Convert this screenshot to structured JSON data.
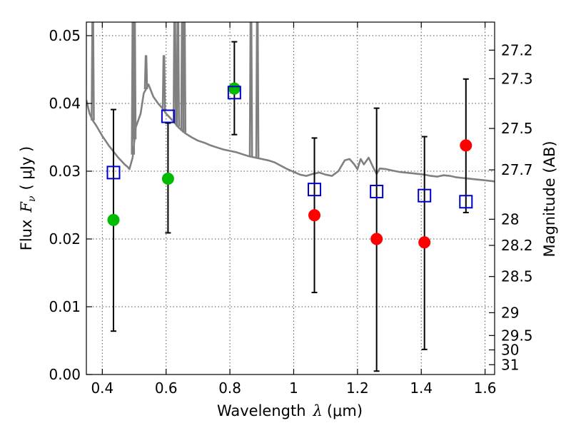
{
  "chart_data": {
    "type": "scatter",
    "title": "",
    "xlabel_prefix": "Wavelength",
    "xlabel_symbol": "λ",
    "xlabel_unit": "(μm)",
    "ylabel_prefix": "Flux",
    "ylabel_symbol": "F",
    "ylabel_subscript": "ν",
    "ylabel_unit": "( μJy )",
    "y2label": "Magnitude (AB)",
    "xlim": [
      0.35,
      1.63
    ],
    "ylim": [
      0.0,
      0.052
    ],
    "grid": true,
    "x_ticks": [
      {
        "v": 0.4,
        "label": "0.4"
      },
      {
        "v": 0.6,
        "label": "0.6"
      },
      {
        "v": 0.8,
        "label": "0.8"
      },
      {
        "v": 1.0,
        "label": "1"
      },
      {
        "v": 1.2,
        "label": "1.2"
      },
      {
        "v": 1.4,
        "label": "1.4"
      },
      {
        "v": 1.6,
        "label": "1.6"
      }
    ],
    "y_ticks": [
      {
        "v": 0.0,
        "label": "0.00"
      },
      {
        "v": 0.01,
        "label": "0.01"
      },
      {
        "v": 0.02,
        "label": "0.02"
      },
      {
        "v": 0.03,
        "label": "0.03"
      },
      {
        "v": 0.04,
        "label": "0.04"
      },
      {
        "v": 0.05,
        "label": "0.05"
      }
    ],
    "mag_ticks": [
      {
        "v": 27.2,
        "label": "27.2"
      },
      {
        "v": 27.3,
        "label": "27.3"
      },
      {
        "v": 27.5,
        "label": "27.5"
      },
      {
        "v": 27.7,
        "label": "27.7"
      },
      {
        "v": 28.0,
        "label": "28"
      },
      {
        "v": 28.2,
        "label": "28.2"
      },
      {
        "v": 28.5,
        "label": "28.5"
      },
      {
        "v": 29.0,
        "label": "29"
      },
      {
        "v": 29.5,
        "label": "29.5"
      },
      {
        "v": 30.0,
        "label": "30"
      },
      {
        "v": 31.0,
        "label": "31"
      }
    ],
    "colors": {
      "model": "#808080",
      "detected": "#00bb00",
      "upper_limit": "#ff0000",
      "model_photometry": "#0000cc",
      "errorbar": "#000000"
    },
    "observed": [
      {
        "x": 0.435,
        "y": 0.0228,
        "err_lo": 0.0064,
        "err_hi": 0.0391,
        "kind": "detected"
      },
      {
        "x": 0.606,
        "y": 0.0289,
        "err_lo": 0.0209,
        "err_hi": 0.0371,
        "kind": "detected"
      },
      {
        "x": 0.814,
        "y": 0.0422,
        "err_lo": 0.0354,
        "err_hi": 0.0491,
        "kind": "detected"
      },
      {
        "x": 1.065,
        "y": 0.0235,
        "err_lo": 0.0121,
        "err_hi": 0.0349,
        "kind": "upper_limit"
      },
      {
        "x": 1.26,
        "y": 0.02,
        "err_lo": 0.0005,
        "err_hi": 0.0393,
        "kind": "upper_limit"
      },
      {
        "x": 1.41,
        "y": 0.0195,
        "err_lo": 0.0037,
        "err_hi": 0.0351,
        "kind": "upper_limit"
      },
      {
        "x": 1.54,
        "y": 0.0338,
        "err_lo": 0.0239,
        "err_hi": 0.0436,
        "kind": "upper_limit"
      }
    ],
    "model_photometry": [
      {
        "x": 0.435,
        "y": 0.0298
      },
      {
        "x": 0.606,
        "y": 0.0381
      },
      {
        "x": 0.814,
        "y": 0.0416
      },
      {
        "x": 1.065,
        "y": 0.0273
      },
      {
        "x": 1.26,
        "y": 0.027
      },
      {
        "x": 1.41,
        "y": 0.0264
      },
      {
        "x": 1.54,
        "y": 0.0255
      }
    ],
    "model_spectrum": [
      [
        0.35,
        0.0405
      ],
      [
        0.36,
        0.0385
      ],
      [
        0.37,
        0.0375
      ],
      [
        0.38,
        0.0368
      ],
      [
        0.39,
        0.036
      ],
      [
        0.4,
        0.0352
      ],
      [
        0.41,
        0.0345
      ],
      [
        0.42,
        0.0338
      ],
      [
        0.43,
        0.0332
      ],
      [
        0.44,
        0.0326
      ],
      [
        0.45,
        0.032
      ],
      [
        0.46,
        0.0315
      ],
      [
        0.47,
        0.031
      ],
      [
        0.48,
        0.0306
      ],
      [
        0.485,
        0.0303
      ],
      [
        0.495,
        0.032
      ],
      [
        0.505,
        0.0365
      ],
      [
        0.52,
        0.0385
      ],
      [
        0.53,
        0.0415
      ],
      [
        0.545,
        0.0428
      ],
      [
        0.56,
        0.041
      ],
      [
        0.575,
        0.04
      ],
      [
        0.59,
        0.0392
      ],
      [
        0.6,
        0.0385
      ],
      [
        0.62,
        0.0375
      ],
      [
        0.64,
        0.0364
      ],
      [
        0.66,
        0.0356
      ],
      [
        0.68,
        0.035
      ],
      [
        0.7,
        0.0345
      ],
      [
        0.72,
        0.0342
      ],
      [
        0.74,
        0.0338
      ],
      [
        0.76,
        0.0335
      ],
      [
        0.78,
        0.0332
      ],
      [
        0.8,
        0.033
      ],
      [
        0.82,
        0.0328
      ],
      [
        0.84,
        0.0325
      ],
      [
        0.86,
        0.0322
      ],
      [
        0.88,
        0.032
      ],
      [
        0.9,
        0.0318
      ],
      [
        0.92,
        0.0316
      ],
      [
        0.94,
        0.0313
      ],
      [
        0.96,
        0.0308
      ],
      [
        0.98,
        0.0303
      ],
      [
        1.0,
        0.0299
      ],
      [
        1.02,
        0.0295
      ],
      [
        1.04,
        0.0293
      ],
      [
        1.06,
        0.0296
      ],
      [
        1.08,
        0.0298
      ],
      [
        1.1,
        0.0295
      ],
      [
        1.12,
        0.0293
      ],
      [
        1.14,
        0.03
      ],
      [
        1.16,
        0.0316
      ],
      [
        1.175,
        0.0318
      ],
      [
        1.19,
        0.031
      ],
      [
        1.2,
        0.0303
      ],
      [
        1.21,
        0.0318
      ],
      [
        1.22,
        0.031
      ],
      [
        1.235,
        0.032
      ],
      [
        1.25,
        0.0305
      ],
      [
        1.26,
        0.0296
      ],
      [
        1.27,
        0.0304
      ],
      [
        1.29,
        0.0303
      ],
      [
        1.31,
        0.0301
      ],
      [
        1.33,
        0.0299
      ],
      [
        1.35,
        0.0298
      ],
      [
        1.37,
        0.0297
      ],
      [
        1.39,
        0.0296
      ],
      [
        1.41,
        0.0295
      ],
      [
        1.43,
        0.0293
      ],
      [
        1.45,
        0.0292
      ],
      [
        1.47,
        0.0294
      ],
      [
        1.49,
        0.0293
      ],
      [
        1.51,
        0.0291
      ],
      [
        1.53,
        0.029
      ],
      [
        1.55,
        0.0289
      ],
      [
        1.57,
        0.0288
      ],
      [
        1.59,
        0.0287
      ],
      [
        1.61,
        0.0286
      ],
      [
        1.63,
        0.0285
      ]
    ],
    "model_emission_lines": [
      {
        "x": 0.37,
        "peak": 0.054
      },
      {
        "x": 0.496,
        "peak": 0.054
      },
      {
        "x": 0.501,
        "peak": 0.054
      },
      {
        "x": 0.537,
        "peak": 0.047
      },
      {
        "x": 0.593,
        "peak": 0.047
      },
      {
        "x": 0.627,
        "peak": 0.054
      },
      {
        "x": 0.637,
        "peak": 0.054
      },
      {
        "x": 0.651,
        "peak": 0.054
      },
      {
        "x": 0.657,
        "peak": 0.054
      },
      {
        "x": 0.866,
        "peak": 0.054
      },
      {
        "x": 0.886,
        "peak": 0.054
      }
    ]
  }
}
